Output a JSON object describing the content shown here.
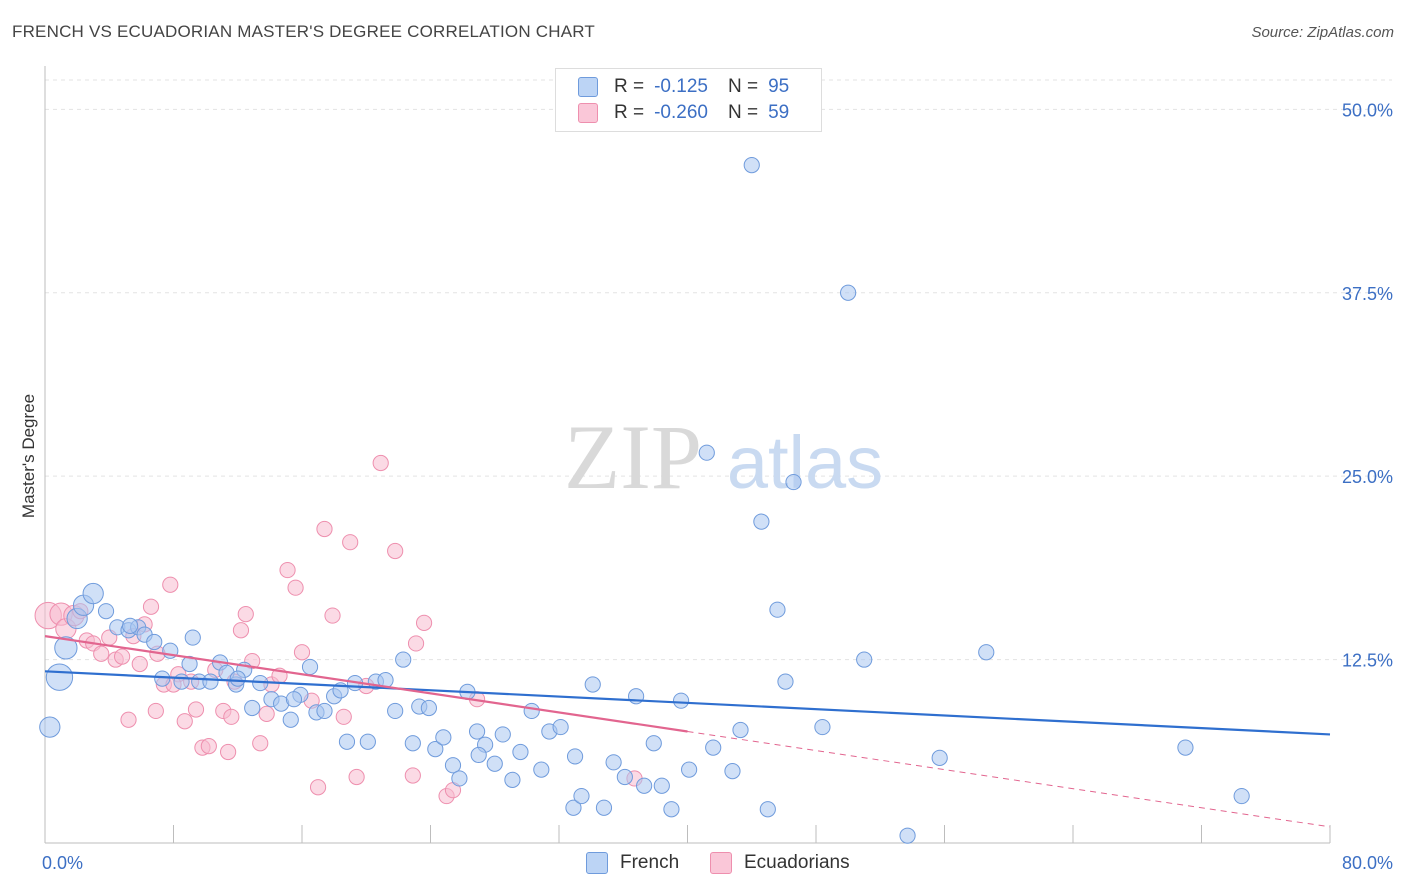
{
  "header": {
    "title": "FRENCH VS ECUADORIAN MASTER'S DEGREE CORRELATION CHART",
    "source": "Source: ZipAtlas.com"
  },
  "watermark": {
    "zip": "ZIP",
    "atlas": "atlas"
  },
  "legend": {
    "rows": [
      {
        "r_label": "R =",
        "r_value": "-0.125",
        "n_label": "N =",
        "n_value": "95"
      },
      {
        "r_label": "R =",
        "r_value": "-0.260",
        "n_label": "N =",
        "n_value": "59"
      }
    ]
  },
  "colors": {
    "french_fill": "#a9c6f0",
    "french_stroke": "#6f9bdc",
    "french_line": "#2f6fcf",
    "ecu_fill": "#f7bcd0",
    "ecu_stroke": "#ee8fae",
    "ecu_line": "#e2658f",
    "axis_label": "#3c6fc4"
  },
  "chart_data": {
    "type": "scatter",
    "ylabel": "Master's Degree",
    "xlim": [
      0,
      80
    ],
    "ylim": [
      0,
      52
    ],
    "y_ticks": [
      12.5,
      25.0,
      37.5,
      50.0
    ],
    "y_tick_labels": [
      "12.5%",
      "25.0%",
      "37.5%",
      "50.0%"
    ],
    "x_tick_labels": [
      "0.0%",
      "80.0%"
    ],
    "grid": true,
    "legend_position": "top-center",
    "series": [
      {
        "name": "French",
        "trend": {
          "x": [
            0,
            80
          ],
          "y": [
            11.7,
            7.4
          ]
        },
        "points": [
          [
            0.3,
            7.9,
            2
          ],
          [
            0.9,
            11.3,
            2.6
          ],
          [
            1.3,
            13.3,
            2.2
          ],
          [
            2.0,
            15.3,
            2
          ],
          [
            2.4,
            16.2,
            2
          ],
          [
            3.0,
            17.0,
            2
          ],
          [
            3.8,
            15.8,
            1.5
          ],
          [
            4.5,
            14.7,
            1.5
          ],
          [
            5.2,
            14.5,
            1.5
          ],
          [
            5.8,
            14.7,
            1.5
          ],
          [
            6.2,
            14.2,
            1.5
          ],
          [
            6.8,
            13.7,
            1.5
          ],
          [
            7.3,
            11.2,
            1.5
          ],
          [
            7.8,
            13.1,
            1.5
          ],
          [
            8.5,
            11.0,
            1.5
          ],
          [
            9.0,
            12.2,
            1.5
          ],
          [
            9.6,
            11.0,
            1.5
          ],
          [
            10.3,
            11.0,
            1.5
          ],
          [
            10.9,
            12.3,
            1.5
          ],
          [
            11.3,
            11.6,
            1.5
          ],
          [
            11.9,
            10.8,
            1.5
          ],
          [
            12.4,
            11.8,
            1.5
          ],
          [
            12.9,
            9.2,
            1.5
          ],
          [
            13.4,
            10.9,
            1.5
          ],
          [
            14.1,
            9.8,
            1.5
          ],
          [
            14.7,
            9.5,
            1.5
          ],
          [
            15.3,
            8.4,
            1.5
          ],
          [
            15.9,
            10.1,
            1.5
          ],
          [
            16.5,
            12.0,
            1.5
          ],
          [
            16.9,
            8.9,
            1.5
          ],
          [
            17.4,
            9.0,
            1.5
          ],
          [
            18.0,
            10.0,
            1.5
          ],
          [
            18.8,
            6.9,
            1.5
          ],
          [
            19.3,
            10.9,
            1.5
          ],
          [
            20.1,
            6.9,
            1.5
          ],
          [
            20.6,
            11.0,
            1.5
          ],
          [
            21.2,
            11.1,
            1.5
          ],
          [
            21.8,
            9.0,
            1.5
          ],
          [
            22.3,
            12.5,
            1.5
          ],
          [
            22.9,
            6.8,
            1.5
          ],
          [
            23.3,
            9.3,
            1.5
          ],
          [
            23.9,
            9.2,
            1.5
          ],
          [
            24.3,
            6.4,
            1.5
          ],
          [
            24.8,
            7.2,
            1.5
          ],
          [
            25.4,
            5.3,
            1.5
          ],
          [
            25.8,
            4.4,
            1.5
          ],
          [
            26.3,
            10.3,
            1.5
          ],
          [
            26.9,
            7.6,
            1.5
          ],
          [
            27.4,
            6.7,
            1.5
          ],
          [
            28.0,
            5.4,
            1.5
          ],
          [
            28.5,
            7.4,
            1.5
          ],
          [
            29.1,
            4.3,
            1.5
          ],
          [
            29.6,
            6.2,
            1.5
          ],
          [
            30.3,
            9.0,
            1.5
          ],
          [
            30.9,
            5.0,
            1.5
          ],
          [
            31.4,
            7.6,
            1.5
          ],
          [
            32.1,
            7.9,
            1.5
          ],
          [
            32.9,
            2.4,
            1.5
          ],
          [
            33.4,
            3.2,
            1.5
          ],
          [
            34.1,
            10.8,
            1.5
          ],
          [
            34.8,
            2.4,
            1.5
          ],
          [
            35.4,
            5.5,
            1.5
          ],
          [
            36.1,
            4.5,
            1.5
          ],
          [
            36.8,
            10.0,
            1.5
          ],
          [
            37.3,
            3.9,
            1.5
          ],
          [
            37.9,
            6.8,
            1.5
          ],
          [
            38.4,
            3.9,
            1.5
          ],
          [
            39.0,
            2.3,
            1.5
          ],
          [
            39.6,
            9.7,
            1.5
          ],
          [
            40.1,
            5.0,
            1.5
          ],
          [
            41.2,
            26.6,
            1.5
          ],
          [
            41.6,
            6.5,
            1.5
          ],
          [
            42.8,
            4.9,
            1.5
          ],
          [
            43.3,
            7.7,
            1.5
          ],
          [
            44.0,
            46.2,
            1.5
          ],
          [
            44.6,
            21.9,
            1.5
          ],
          [
            45.0,
            2.3,
            1.5
          ],
          [
            45.6,
            15.9,
            1.5
          ],
          [
            46.1,
            11.0,
            1.5
          ],
          [
            46.6,
            24.6,
            1.5
          ],
          [
            48.4,
            7.9,
            1.5
          ],
          [
            50.0,
            37.5,
            1.5
          ],
          [
            51.0,
            12.5,
            1.5
          ],
          [
            53.7,
            0.5,
            1.5
          ],
          [
            55.7,
            5.8,
            1.5
          ],
          [
            58.6,
            13.0,
            1.5
          ],
          [
            71.0,
            6.5,
            1.5
          ],
          [
            74.5,
            3.2,
            1.5
          ],
          [
            5.3,
            14.8,
            1.5
          ],
          [
            9.2,
            14.0,
            1.5
          ],
          [
            12.0,
            11.2,
            1.5
          ],
          [
            15.5,
            9.8,
            1.5
          ],
          [
            18.4,
            10.4,
            1.5
          ],
          [
            27.0,
            6.0,
            1.5
          ],
          [
            33.0,
            5.9,
            1.5
          ]
        ]
      },
      {
        "name": "Ecuadorians",
        "trend": {
          "x": [
            0,
            40
          ],
          "y": [
            14.1,
            7.6
          ]
        },
        "trend_ext": {
          "x": [
            40,
            80
          ],
          "y": [
            7.6,
            1.1
          ]
        },
        "points": [
          [
            0.2,
            15.5,
            2.6
          ],
          [
            1.0,
            15.6,
            2.2
          ],
          [
            1.3,
            14.6,
            2
          ],
          [
            1.8,
            15.5,
            2
          ],
          [
            2.2,
            15.8,
            1.5
          ],
          [
            2.6,
            13.8,
            1.5
          ],
          [
            3.0,
            13.6,
            1.5
          ],
          [
            3.5,
            12.9,
            1.5
          ],
          [
            4.0,
            14.0,
            1.5
          ],
          [
            4.4,
            12.5,
            1.5
          ],
          [
            4.8,
            12.7,
            1.5
          ],
          [
            5.2,
            8.4,
            1.5
          ],
          [
            5.5,
            14.1,
            1.5
          ],
          [
            5.9,
            12.2,
            1.5
          ],
          [
            6.2,
            14.9,
            1.5
          ],
          [
            6.6,
            16.1,
            1.5
          ],
          [
            7.0,
            12.9,
            1.5
          ],
          [
            7.4,
            10.8,
            1.5
          ],
          [
            7.8,
            17.6,
            1.5
          ],
          [
            8.3,
            11.5,
            1.5
          ],
          [
            8.7,
            8.3,
            1.5
          ],
          [
            9.1,
            11.0,
            1.5
          ],
          [
            9.4,
            9.1,
            1.5
          ],
          [
            9.8,
            6.5,
            1.5
          ],
          [
            10.2,
            6.6,
            1.5
          ],
          [
            10.6,
            11.8,
            1.5
          ],
          [
            11.1,
            9.0,
            1.5
          ],
          [
            11.4,
            6.2,
            1.5
          ],
          [
            11.8,
            11.0,
            1.5
          ],
          [
            12.2,
            14.5,
            1.5
          ],
          [
            12.5,
            15.6,
            1.5
          ],
          [
            12.9,
            12.4,
            1.5
          ],
          [
            13.4,
            6.8,
            1.5
          ],
          [
            13.8,
            8.8,
            1.5
          ],
          [
            14.1,
            10.8,
            1.5
          ],
          [
            14.6,
            11.4,
            1.5
          ],
          [
            15.1,
            18.6,
            1.5
          ],
          [
            15.6,
            17.4,
            1.5
          ],
          [
            16.0,
            13.0,
            1.5
          ],
          [
            16.6,
            9.7,
            1.5
          ],
          [
            17.0,
            3.8,
            1.5
          ],
          [
            17.4,
            21.4,
            1.5
          ],
          [
            17.9,
            15.5,
            1.5
          ],
          [
            19.0,
            20.5,
            1.5
          ],
          [
            19.4,
            4.5,
            1.5
          ],
          [
            20.0,
            10.7,
            1.5
          ],
          [
            20.9,
            25.9,
            1.5
          ],
          [
            21.8,
            19.9,
            1.5
          ],
          [
            23.1,
            13.6,
            1.5
          ],
          [
            23.6,
            15.0,
            1.5
          ],
          [
            25.0,
            3.2,
            1.5
          ],
          [
            25.4,
            3.6,
            1.5
          ],
          [
            26.9,
            9.8,
            1.5
          ],
          [
            36.7,
            4.4,
            1.5
          ],
          [
            18.6,
            8.6,
            1.5
          ],
          [
            22.9,
            4.6,
            1.5
          ],
          [
            11.6,
            8.6,
            1.5
          ],
          [
            8.0,
            10.8,
            1.5
          ],
          [
            6.9,
            9.0,
            1.5
          ]
        ]
      }
    ]
  }
}
